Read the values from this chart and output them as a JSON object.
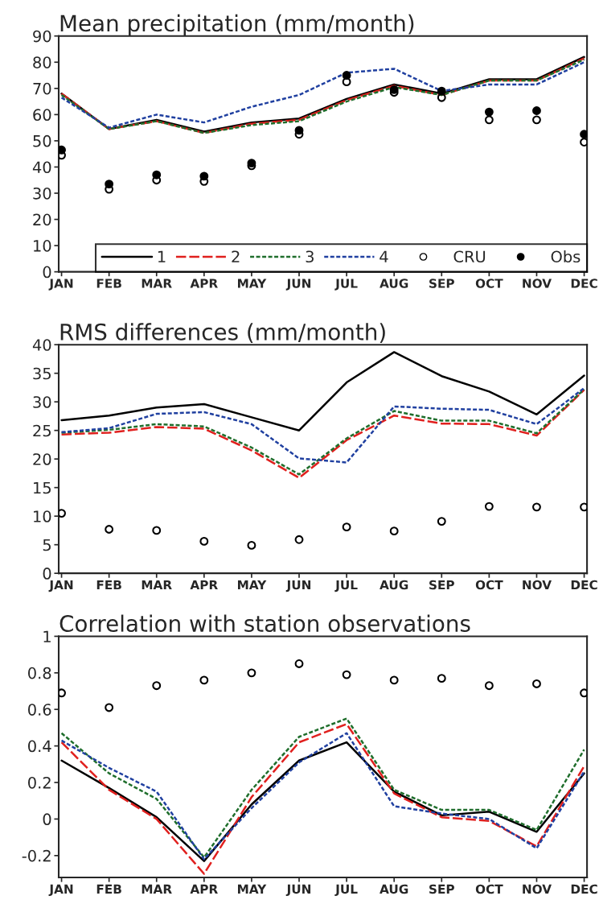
{
  "chart_data": [
    {
      "type": "line",
      "title": "Mean precipitation (mm/month)",
      "categories": [
        "JAN",
        "FEB",
        "MAR",
        "APR",
        "MAY",
        "JUN",
        "JUL",
        "AUG",
        "SEP",
        "OCT",
        "NOV",
        "DEC"
      ],
      "ylim": [
        0,
        90
      ],
      "yticks": [
        0,
        10,
        20,
        30,
        40,
        50,
        60,
        70,
        80,
        90
      ],
      "legend": "bottom",
      "grid": false,
      "series": [
        {
          "name": "1",
          "color": "#000000",
          "line_style": "solid",
          "values": [
            68,
            54.5,
            58,
            53.5,
            57,
            58.5,
            66,
            71.5,
            68,
            73.5,
            73.5,
            82
          ]
        },
        {
          "name": "2",
          "color": "#e0201e",
          "line_style": "dashed",
          "values": [
            68,
            54.5,
            57.5,
            53,
            56.5,
            58,
            65.5,
            71,
            67.5,
            73,
            73,
            81.5
          ]
        },
        {
          "name": "3",
          "color": "#1f6e2c",
          "line_style": "dotted",
          "values": [
            67.5,
            54.5,
            57.5,
            53,
            56,
            57.5,
            65,
            70.5,
            67.5,
            73,
            73,
            81
          ]
        },
        {
          "name": "4",
          "color": "#2040a0",
          "line_style": "dotted",
          "values": [
            66.5,
            55,
            60,
            57,
            63,
            67.5,
            76,
            77.5,
            69,
            71.5,
            71.5,
            80
          ]
        },
        {
          "name": "CRU",
          "type": "scatter",
          "color": "#000000",
          "values": [
            44.5,
            31.5,
            35,
            34.5,
            40.5,
            52.5,
            72.5,
            68.5,
            66.5,
            58,
            58,
            49.5
          ]
        },
        {
          "name": "Obs",
          "type": "scatter",
          "marker": "circle",
          "color": "#000000",
          "values": [
            46.5,
            33.5,
            37,
            36.5,
            41.5,
            54,
            75,
            69.5,
            69,
            61,
            61.5,
            52.5
          ]
        }
      ]
    },
    {
      "type": "line",
      "title": "RMS differences (mm/month)",
      "categories": [
        "JAN",
        "FEB",
        "MAR",
        "APR",
        "MAY",
        "JUN",
        "JUL",
        "AUG",
        "SEP",
        "OCT",
        "NOV",
        "DEC"
      ],
      "ylim": [
        0,
        40
      ],
      "yticks": [
        0,
        5,
        10,
        15,
        20,
        25,
        30,
        35,
        40
      ],
      "grid": false,
      "series": [
        {
          "color": "#000000",
          "line_style": "solid",
          "values": [
            26.8,
            27.6,
            29,
            29.6,
            27.3,
            25,
            33.4,
            38.7,
            34.5,
            31.8,
            27.8,
            34.6
          ]
        },
        {
          "color": "#e0201e",
          "line_style": "dashed",
          "values": [
            24.3,
            24.6,
            25.6,
            25.3,
            21.5,
            16.7,
            23.3,
            27.6,
            26.2,
            26.1,
            24.1,
            32.1
          ]
        },
        {
          "color": "#1f6e2c",
          "line_style": "dotted",
          "values": [
            24.6,
            25.1,
            26.1,
            25.7,
            22,
            17.3,
            23.6,
            28.4,
            26.7,
            26.7,
            24.5,
            32.2
          ]
        },
        {
          "color": "#2040a0",
          "line_style": "dotted",
          "values": [
            24.7,
            25.4,
            27.9,
            28.2,
            26.1,
            20.1,
            19.4,
            29.2,
            28.8,
            28.6,
            26.1,
            32.4
          ]
        },
        {
          "type": "scatter",
          "color": "#000000",
          "values": [
            10.5,
            7.7,
            7.5,
            5.6,
            4.9,
            5.9,
            8.1,
            7.4,
            9.1,
            11.7,
            11.6,
            11.6
          ]
        }
      ]
    },
    {
      "type": "line",
      "title": "Correlation with station observations",
      "categories": [
        "JAN",
        "FEB",
        "MAR",
        "APR",
        "MAY",
        "JUN",
        "JUL",
        "AUG",
        "SEP",
        "OCT",
        "NOV",
        "DEC"
      ],
      "ylim": [
        -0.32,
        1
      ],
      "yticks": [
        -0.2,
        0,
        0.2,
        0.4,
        0.6,
        0.8,
        1
      ],
      "grid": false,
      "series": [
        {
          "color": "#000000",
          "line_style": "solid",
          "values": [
            0.32,
            0.17,
            0.01,
            -0.23,
            0.08,
            0.32,
            0.42,
            0.15,
            0.02,
            0.04,
            -0.07,
            0.25
          ]
        },
        {
          "color": "#e0201e",
          "line_style": "dashed",
          "values": [
            0.42,
            0.16,
            0.0,
            -0.3,
            0.12,
            0.42,
            0.52,
            0.14,
            0.01,
            -0.01,
            -0.15,
            0.29
          ]
        },
        {
          "color": "#1f6e2c",
          "line_style": "dotted",
          "values": [
            0.47,
            0.25,
            0.11,
            -0.21,
            0.16,
            0.45,
            0.55,
            0.16,
            0.05,
            0.05,
            -0.06,
            0.38
          ]
        },
        {
          "color": "#2040a0",
          "line_style": "dotted",
          "values": [
            0.43,
            0.28,
            0.15,
            -0.22,
            0.06,
            0.31,
            0.47,
            0.07,
            0.03,
            0.0,
            -0.16,
            0.26
          ]
        },
        {
          "type": "scatter",
          "color": "#000000",
          "values": [
            0.69,
            0.61,
            0.73,
            0.76,
            0.8,
            0.85,
            0.79,
            0.76,
            0.77,
            0.73,
            0.74,
            0.69
          ]
        }
      ]
    }
  ]
}
